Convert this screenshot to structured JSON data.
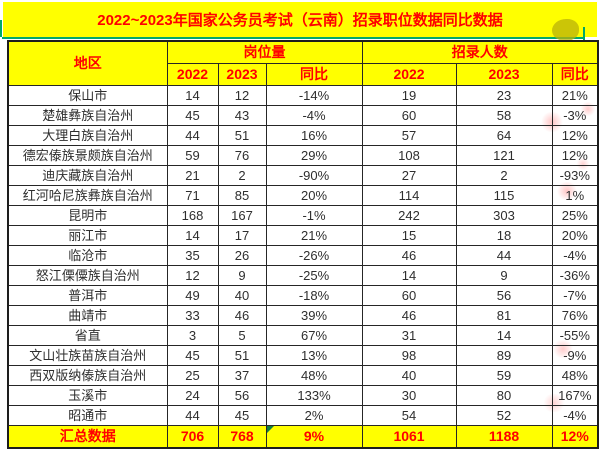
{
  "title": "2022~2023年国家公务员考试（云南）招录职位数据同比数据",
  "table": {
    "region_header": "地区",
    "group_headers": {
      "positions": "岗位量",
      "recruits": "招录人数"
    },
    "sub_headers": [
      "2022",
      "2023",
      "同比",
      "2022",
      "2023",
      "同比"
    ],
    "rows": [
      {
        "region": "保山市",
        "values": [
          "14",
          "12",
          "-14%",
          "19",
          "23",
          "21%"
        ]
      },
      {
        "region": "楚雄彝族自治州",
        "values": [
          "45",
          "43",
          "-4%",
          "60",
          "58",
          "-3%"
        ]
      },
      {
        "region": "大理白族自治州",
        "values": [
          "44",
          "51",
          "16%",
          "57",
          "64",
          "12%"
        ]
      },
      {
        "region": "德宏傣族景颇族自治州",
        "values": [
          "59",
          "76",
          "29%",
          "108",
          "121",
          "12%"
        ]
      },
      {
        "region": "迪庆藏族自治州",
        "values": [
          "21",
          "2",
          "-90%",
          "27",
          "2",
          "-93%"
        ]
      },
      {
        "region": "红河哈尼族彝族自治州",
        "values": [
          "71",
          "85",
          "20%",
          "114",
          "115",
          "1%"
        ]
      },
      {
        "region": "昆明市",
        "values": [
          "168",
          "167",
          "-1%",
          "242",
          "303",
          "25%"
        ]
      },
      {
        "region": "丽江市",
        "values": [
          "14",
          "17",
          "21%",
          "15",
          "18",
          "20%"
        ]
      },
      {
        "region": "临沧市",
        "values": [
          "35",
          "26",
          "-26%",
          "46",
          "44",
          "-4%"
        ]
      },
      {
        "region": "怒江傈僳族自治州",
        "values": [
          "12",
          "9",
          "-25%",
          "14",
          "9",
          "-36%"
        ]
      },
      {
        "region": "普洱市",
        "values": [
          "49",
          "40",
          "-18%",
          "60",
          "56",
          "-7%"
        ]
      },
      {
        "region": "曲靖市",
        "values": [
          "33",
          "46",
          "39%",
          "46",
          "81",
          "76%"
        ]
      },
      {
        "region": "省直",
        "values": [
          "3",
          "5",
          "67%",
          "31",
          "14",
          "-55%"
        ]
      },
      {
        "region": "文山壮族苗族自治州",
        "values": [
          "45",
          "51",
          "13%",
          "98",
          "89",
          "-9%"
        ]
      },
      {
        "region": "西双版纳傣族自治州",
        "values": [
          "25",
          "37",
          "48%",
          "40",
          "59",
          "48%"
        ]
      },
      {
        "region": "玉溪市",
        "values": [
          "24",
          "56",
          "133%",
          "30",
          "80",
          "167%"
        ]
      },
      {
        "region": "昭通市",
        "values": [
          "44",
          "45",
          "2%",
          "54",
          "52",
          "-4%"
        ]
      }
    ],
    "summary": {
      "region": "汇总数据",
      "values": [
        "706",
        "768",
        "9%",
        "1061",
        "1188",
        "12%"
      ]
    }
  },
  "colors": {
    "cell_yellow": "#ffff00",
    "header_text_red": "#ff0000",
    "grid_line": "#262626",
    "selection_green": "#00a86b",
    "data_text": "#2e2e2e",
    "comment_flag_green": "#107c41"
  }
}
